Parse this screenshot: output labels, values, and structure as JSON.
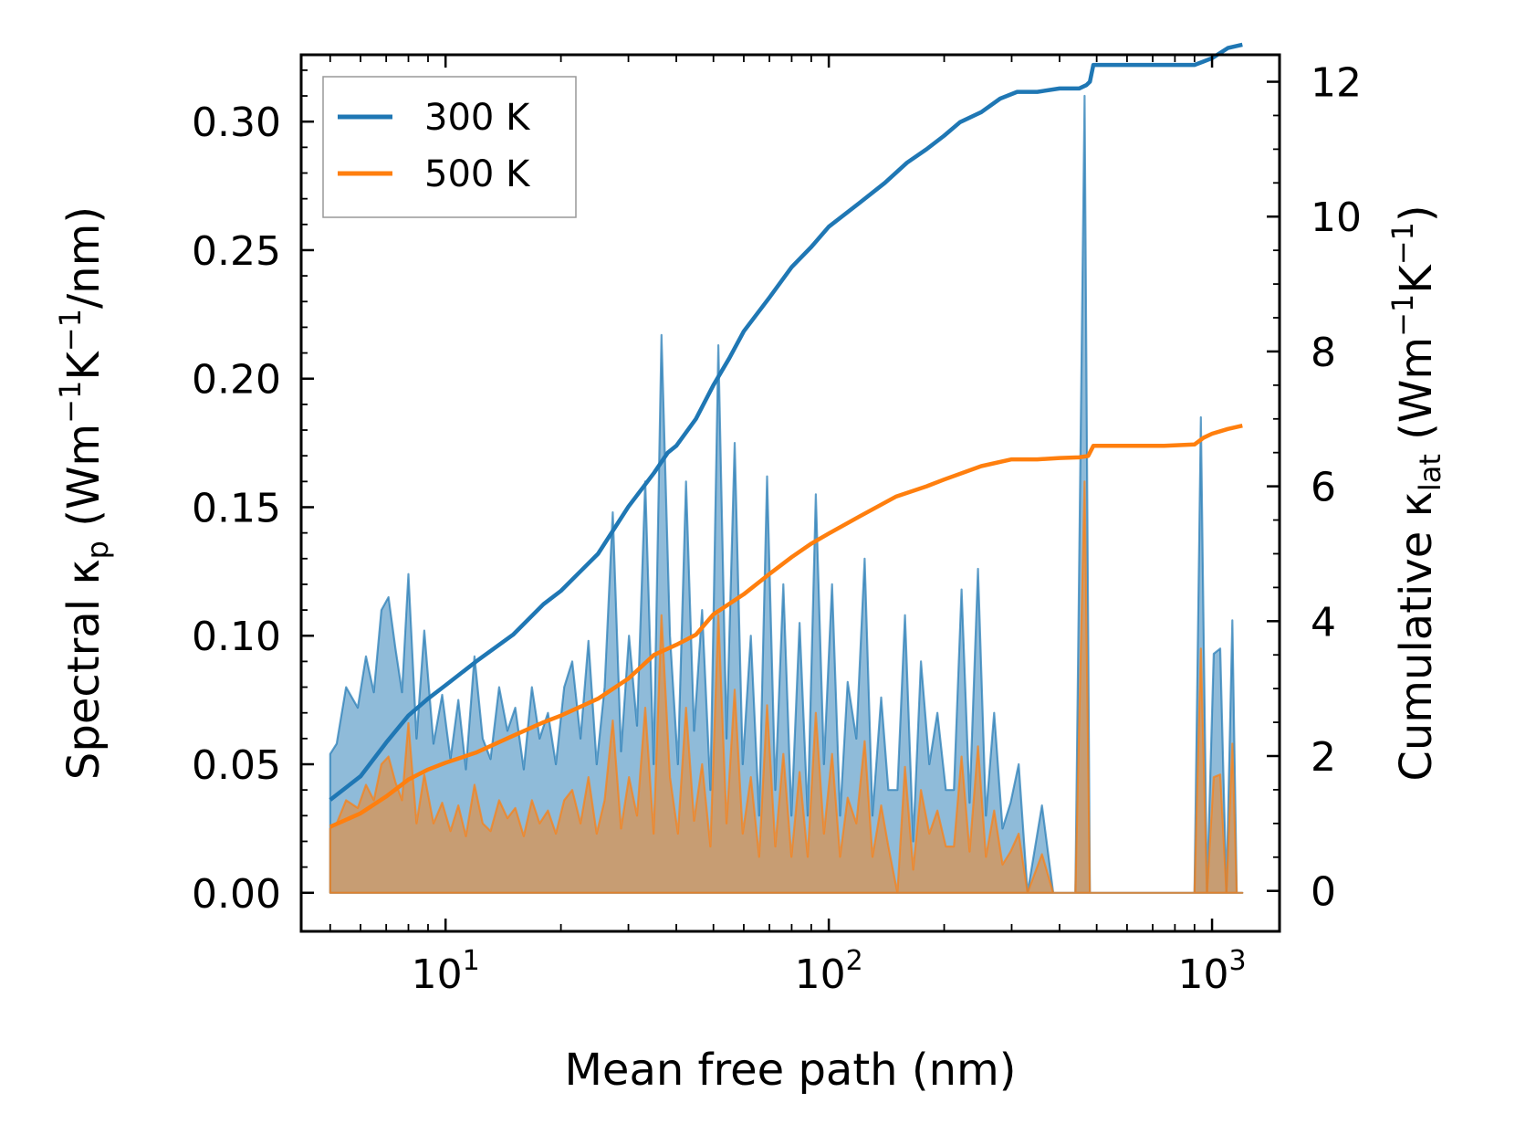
{
  "chart_data": {
    "type": "line",
    "xlabel": "Mean free path (nm)",
    "ylabel_left_parts": {
      "a": "Spectral κ",
      "sub": "p",
      "b": " (Wm",
      "sup1": "−1",
      "c": "K",
      "sup2": "−1",
      "d": "/nm)"
    },
    "ylabel_right_parts": {
      "a": "Cumulative κ",
      "sub": "lat",
      "b": " (Wm",
      "sup1": "−1",
      "c": "K",
      "sup2": "−1",
      "d": ")"
    },
    "x_scale": "log",
    "xlim": [
      4.2,
      1500
    ],
    "ylim_left": [
      -0.015,
      0.326
    ],
    "ylim_right": [
      -0.6,
      12.4
    ],
    "x_ticks": [
      {
        "base": "10",
        "exp": "1",
        "value": 10
      },
      {
        "base": "10",
        "exp": "2",
        "value": 100
      },
      {
        "base": "10",
        "exp": "3",
        "value": 1000
      }
    ],
    "y_ticks_left": [
      "0.00",
      "0.05",
      "0.10",
      "0.15",
      "0.20",
      "0.25",
      "0.30"
    ],
    "y_ticks_right": [
      "0",
      "2",
      "4",
      "6",
      "8",
      "10",
      "12"
    ],
    "legend_position": "top-left",
    "legend": [
      "300 K",
      "500 K"
    ],
    "colors": {
      "300K": "#1f77b4",
      "500K": "#ff7f0e"
    },
    "spectral_300K": {
      "x": [
        5.0,
        5.2,
        5.5,
        5.9,
        6.2,
        6.5,
        6.8,
        7.1,
        7.4,
        7.7,
        8.0,
        8.4,
        8.8,
        9.3,
        9.8,
        10.3,
        10.8,
        11.3,
        11.9,
        12.5,
        13.1,
        13.8,
        14.5,
        15.2,
        16.0,
        16.8,
        17.6,
        18.5,
        19.4,
        20.4,
        21.4,
        22.5,
        23.6,
        24.8,
        26.0,
        27.3,
        28.7,
        30.1,
        31.6,
        33.2,
        34.9,
        36.6,
        38.5,
        40.4,
        42.4,
        44.5,
        46.7,
        49.1,
        51.5,
        54.1,
        56.8,
        59.6,
        62.6,
        65.8,
        69.0,
        72.5,
        76.1,
        79.9,
        83.9,
        88.1,
        92.5,
        97.1,
        102.0,
        107.0,
        112.0,
        118.0,
        124.0,
        130.0,
        137.0,
        143.0,
        151.0,
        158.0,
        166.0,
        174.0,
        183.0,
        192.0,
        202.0,
        212.0,
        222.0,
        233.0,
        245.0,
        257.0,
        270.0,
        284.0,
        298.0,
        313.0,
        330.0,
        360.0,
        385.0,
        410.0,
        440.0,
        465.0,
        480.0,
        495.0,
        520.0,
        560.0,
        650.0,
        760.0,
        860.0,
        900.0,
        935.0,
        970.0,
        1010.0,
        1050.0,
        1090.0,
        1130.0,
        1160.0,
        1200.0
      ],
      "y": [
        0.054,
        0.058,
        0.08,
        0.072,
        0.092,
        0.078,
        0.11,
        0.115,
        0.095,
        0.078,
        0.124,
        0.06,
        0.102,
        0.058,
        0.077,
        0.052,
        0.075,
        0.048,
        0.092,
        0.06,
        0.052,
        0.08,
        0.063,
        0.072,
        0.048,
        0.08,
        0.06,
        0.07,
        0.05,
        0.08,
        0.09,
        0.06,
        0.098,
        0.05,
        0.08,
        0.148,
        0.055,
        0.1,
        0.065,
        0.16,
        0.05,
        0.217,
        0.1,
        0.05,
        0.16,
        0.063,
        0.11,
        0.04,
        0.213,
        0.06,
        0.175,
        0.05,
        0.1,
        0.03,
        0.162,
        0.04,
        0.12,
        0.03,
        0.105,
        0.03,
        0.155,
        0.05,
        0.12,
        0.03,
        0.082,
        0.06,
        0.13,
        0.03,
        0.076,
        0.04,
        0.04,
        0.108,
        0.02,
        0.09,
        0.05,
        0.07,
        0.04,
        0.04,
        0.118,
        0.035,
        0.126,
        0.03,
        0.07,
        0.025,
        0.035,
        0.05,
        0.0,
        0.034,
        0.0,
        0.0,
        0.0,
        0.31,
        0.0,
        0.0,
        0.0,
        0.0,
        0.0,
        0.0,
        0.0,
        0.0,
        0.185,
        0.0,
        0.093,
        0.095,
        0.0,
        0.106,
        0.0,
        0.0
      ]
    },
    "spectral_500K": {
      "x": [
        5.0,
        5.2,
        5.5,
        5.9,
        6.2,
        6.5,
        6.8,
        7.1,
        7.4,
        7.7,
        8.0,
        8.4,
        8.8,
        9.3,
        9.8,
        10.3,
        10.8,
        11.3,
        11.9,
        12.5,
        13.1,
        13.8,
        14.5,
        15.2,
        16.0,
        16.8,
        17.6,
        18.5,
        19.4,
        20.4,
        21.4,
        22.5,
        23.6,
        24.8,
        26.0,
        27.3,
        28.7,
        30.1,
        31.6,
        33.2,
        34.9,
        36.6,
        38.5,
        40.4,
        42.4,
        44.5,
        46.7,
        49.1,
        51.5,
        54.1,
        56.8,
        59.6,
        62.6,
        65.8,
        69.0,
        72.5,
        76.1,
        79.9,
        83.9,
        88.1,
        92.5,
        97.1,
        102.0,
        107.0,
        112.0,
        118.0,
        124.0,
        130.0,
        137.0,
        143.0,
        151.0,
        158.0,
        166.0,
        174.0,
        183.0,
        192.0,
        202.0,
        212.0,
        222.0,
        233.0,
        245.0,
        257.0,
        270.0,
        284.0,
        298.0,
        313.0,
        330.0,
        360.0,
        385.0,
        410.0,
        440.0,
        465.0,
        480.0,
        495.0,
        520.0,
        560.0,
        650.0,
        760.0,
        860.0,
        900.0,
        935.0,
        970.0,
        1010.0,
        1050.0,
        1090.0,
        1130.0,
        1160.0,
        1200.0
      ],
      "y": [
        0.025,
        0.027,
        0.036,
        0.033,
        0.042,
        0.036,
        0.05,
        0.053,
        0.043,
        0.036,
        0.066,
        0.027,
        0.046,
        0.027,
        0.035,
        0.024,
        0.034,
        0.022,
        0.042,
        0.027,
        0.024,
        0.036,
        0.029,
        0.033,
        0.022,
        0.036,
        0.027,
        0.032,
        0.023,
        0.036,
        0.04,
        0.027,
        0.045,
        0.023,
        0.036,
        0.067,
        0.025,
        0.045,
        0.03,
        0.072,
        0.023,
        0.108,
        0.045,
        0.023,
        0.072,
        0.028,
        0.05,
        0.018,
        0.108,
        0.027,
        0.079,
        0.023,
        0.045,
        0.014,
        0.073,
        0.018,
        0.054,
        0.014,
        0.047,
        0.014,
        0.07,
        0.023,
        0.054,
        0.014,
        0.037,
        0.027,
        0.059,
        0.014,
        0.034,
        0.018,
        0.0,
        0.049,
        0.009,
        0.04,
        0.023,
        0.032,
        0.018,
        0.018,
        0.053,
        0.016,
        0.057,
        0.014,
        0.032,
        0.011,
        0.016,
        0.023,
        0.0,
        0.015,
        0.0,
        0.0,
        0.0,
        0.16,
        0.0,
        0.0,
        0.0,
        0.0,
        0.0,
        0.0,
        0.0,
        0.0,
        0.095,
        0.0,
        0.045,
        0.046,
        0.0,
        0.058,
        0.0,
        0.0
      ]
    },
    "cumulative_300K": {
      "x": [
        5.0,
        6.0,
        7.0,
        8.0,
        9.0,
        10.0,
        12.0,
        15.0,
        18.0,
        20.0,
        25.0,
        30.0,
        35.0,
        38.0,
        40.0,
        45.0,
        50.0,
        55.0,
        60.0,
        70.0,
        80.0,
        90.0,
        100.0,
        120.0,
        140.0,
        160.0,
        180.0,
        200.0,
        220.0,
        250.0,
        280.0,
        310.0,
        350.0,
        400.0,
        450.0,
        470.0,
        480.0,
        490.0,
        600.0,
        750.0,
        900.0,
        950.0,
        1000.0,
        1100.0,
        1200.0
      ],
      "y": [
        1.35,
        1.7,
        2.2,
        2.6,
        2.85,
        3.05,
        3.4,
        3.8,
        4.25,
        4.45,
        5.0,
        5.7,
        6.2,
        6.5,
        6.6,
        7.0,
        7.5,
        7.9,
        8.3,
        8.8,
        9.25,
        9.55,
        9.85,
        10.2,
        10.5,
        10.8,
        11.0,
        11.2,
        11.4,
        11.55,
        11.75,
        11.85,
        11.85,
        11.9,
        11.9,
        11.95,
        12.0,
        12.25,
        12.25,
        12.25,
        12.25,
        12.3,
        12.35,
        12.5,
        12.55
      ]
    },
    "cumulative_500K": {
      "x": [
        5.0,
        6.0,
        7.0,
        8.0,
        9.0,
        10.0,
        12.0,
        15.0,
        18.0,
        20.0,
        25.0,
        30.0,
        35.0,
        40.0,
        45.0,
        50.0,
        60.0,
        70.0,
        80.0,
        90.0,
        100.0,
        120.0,
        150.0,
        180.0,
        200.0,
        250.0,
        300.0,
        350.0,
        400.0,
        450.0,
        475.0,
        490.0,
        600.0,
        750.0,
        900.0,
        950.0,
        1000.0,
        1100.0,
        1200.0
      ],
      "y": [
        0.95,
        1.15,
        1.4,
        1.65,
        1.8,
        1.9,
        2.05,
        2.3,
        2.5,
        2.6,
        2.85,
        3.15,
        3.5,
        3.65,
        3.8,
        4.1,
        4.4,
        4.7,
        4.95,
        5.15,
        5.3,
        5.55,
        5.85,
        6.0,
        6.1,
        6.3,
        6.4,
        6.4,
        6.42,
        6.43,
        6.45,
        6.6,
        6.6,
        6.6,
        6.62,
        6.72,
        6.78,
        6.85,
        6.9
      ]
    }
  }
}
